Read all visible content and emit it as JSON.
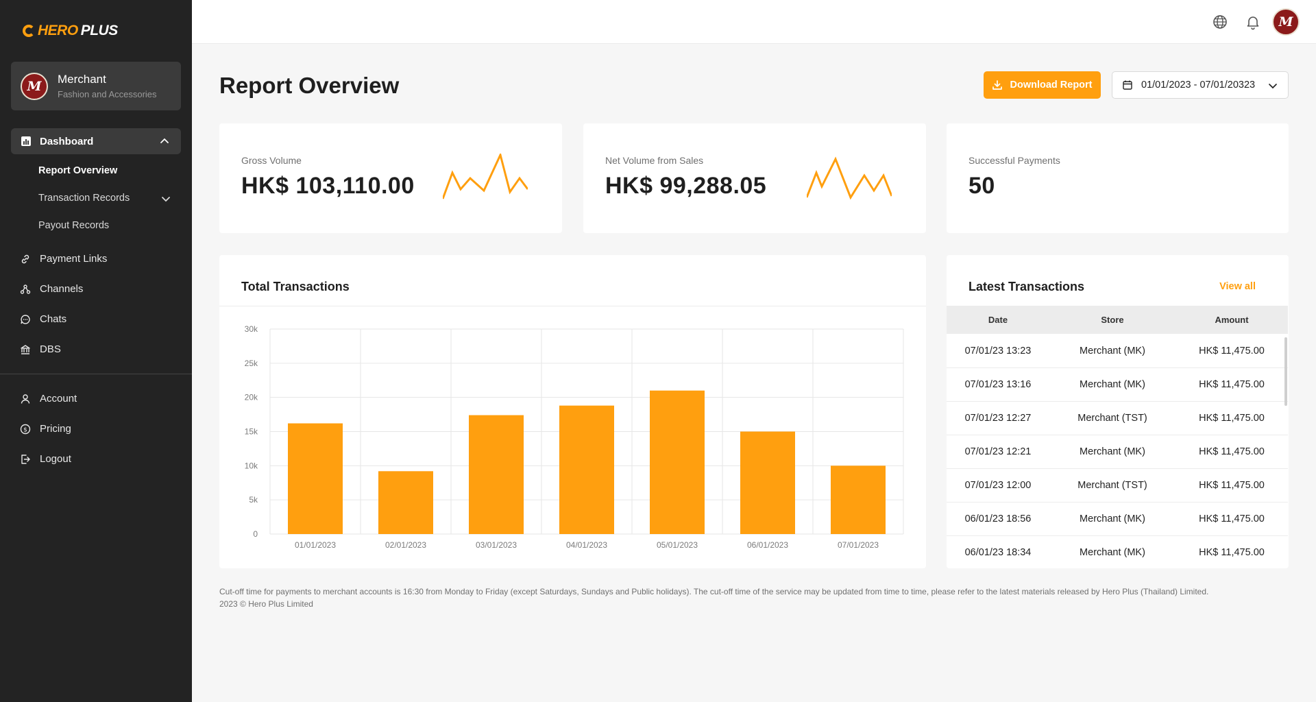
{
  "brand": {
    "hero": "HERO",
    "plus": "PLUS",
    "accent": "#ff9f0f"
  },
  "merchant": {
    "name": "Merchant",
    "category": "Fashion and Accessories",
    "avatar_letter": "M"
  },
  "sidebar": {
    "dashboard_label": "Dashboard",
    "dashboard_sub": [
      {
        "label": "Report Overview",
        "active": true
      },
      {
        "label": "Transaction Records",
        "active": false
      },
      {
        "label": "Payout Records",
        "active": false
      }
    ],
    "items": [
      {
        "label": "Payment Links",
        "icon": "link-icon"
      },
      {
        "label": "Channels",
        "icon": "channels-icon"
      },
      {
        "label": "Chats",
        "icon": "chat-icon"
      },
      {
        "label": "DBS",
        "icon": "bank-icon"
      }
    ],
    "account_items": [
      {
        "label": "Account",
        "icon": "user-icon"
      },
      {
        "label": "Pricing",
        "icon": "dollar-icon"
      },
      {
        "label": "Logout",
        "icon": "logout-icon"
      }
    ]
  },
  "topbar": {
    "avatar_letter": "M"
  },
  "header": {
    "title": "Report Overview",
    "download_label": "Download Report",
    "date_range": "01/01/2023 - 07/01/20323"
  },
  "stats": [
    {
      "label": "Gross Volume",
      "value": "HK$ 103,110.00"
    },
    {
      "label": "Net Volume from Sales",
      "value": "HK$ 99,288.05"
    },
    {
      "label": "Successful Payments",
      "value": "50"
    }
  ],
  "chart_data": {
    "type": "bar",
    "title": "Total Transactions",
    "categories": [
      "01/01/2023",
      "02/01/2023",
      "03/01/2023",
      "04/01/2023",
      "05/01/2023",
      "06/01/2023",
      "07/01/2023"
    ],
    "values": [
      16200,
      9200,
      17400,
      18800,
      21000,
      15000,
      10000
    ],
    "ylim": [
      0,
      30000
    ],
    "yticks": [
      "0",
      "5k",
      "10k",
      "15k",
      "20k",
      "25k",
      "30k"
    ],
    "color": "#ff9f0f",
    "grid": true
  },
  "latest": {
    "title": "Latest Transactions",
    "view_all": "View all",
    "columns": [
      "Date",
      "Store",
      "Amount"
    ],
    "rows": [
      {
        "date": "07/01/23 13:23",
        "store": "Merchant (MK)",
        "amount": "HK$ 11,475.00"
      },
      {
        "date": "07/01/23 13:16",
        "store": "Merchant (MK)",
        "amount": "HK$ 11,475.00"
      },
      {
        "date": "07/01/23 12:27",
        "store": "Merchant (TST)",
        "amount": "HK$ 11,475.00"
      },
      {
        "date": "07/01/23 12:21",
        "store": "Merchant (MK)",
        "amount": "HK$ 11,475.00"
      },
      {
        "date": "07/01/23 12:00",
        "store": "Merchant (TST)",
        "amount": "HK$ 11,475.00"
      },
      {
        "date": "06/01/23 18:56",
        "store": "Merchant (MK)",
        "amount": "HK$ 11,475.00"
      },
      {
        "date": "06/01/23 18:34",
        "store": "Merchant (MK)",
        "amount": "HK$ 11,475.00"
      }
    ]
  },
  "footer": {
    "note": "Cut-off time for payments to merchant accounts is 16:30 from Monday to Friday (except Saturdays, Sundays and Public holidays). The cut-off time of the service may be updated from time to time, please refer to the latest materials released by Hero Plus (Thailand) Limited.",
    "copyright": "2023 © Hero Plus Limited"
  }
}
